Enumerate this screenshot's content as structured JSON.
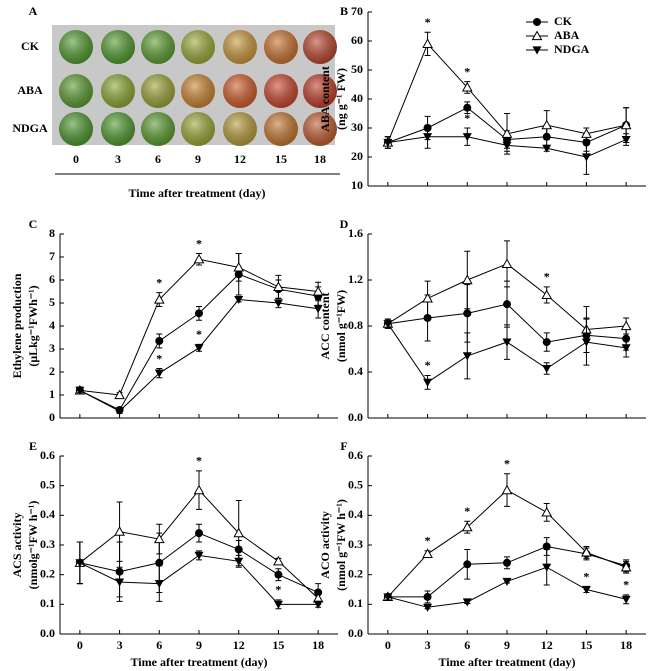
{
  "chart_data": [
    {
      "type": "image",
      "panel_label": "A",
      "rows": [
        "CK",
        "ABA",
        "NDGA"
      ],
      "columns": [
        0,
        3,
        6,
        9,
        12,
        15,
        18
      ],
      "xlabel": "Time after treatment (day)"
    },
    {
      "type": "line",
      "panel_label": "B",
      "ylabel": [
        "ABA content",
        "(ng g⁻¹ FW)"
      ],
      "x": [
        0,
        3,
        6,
        9,
        12,
        15,
        18
      ],
      "xlim": [
        -1.5,
        19.5
      ],
      "xticks": [
        0,
        3,
        6,
        9,
        12,
        15,
        18
      ],
      "xtick_labels": false,
      "ylim": [
        10,
        70
      ],
      "yticks": [
        10,
        20,
        30,
        40,
        50,
        60,
        70
      ],
      "legend": "upper right",
      "series": [
        {
          "name": "CK",
          "color": "#000000",
          "marker": "circle",
          "values": [
            25,
            30,
            37,
            26,
            27,
            25,
            31
          ],
          "errors": [
            2,
            4,
            2,
            3,
            3,
            3,
            6
          ]
        },
        {
          "name": "ABA",
          "color": "#000000",
          "marker": "triangle-open",
          "values": [
            25,
            59,
            44,
            28,
            31,
            28,
            31
          ],
          "errors": [
            2,
            4,
            2,
            7,
            5,
            2,
            6
          ]
        },
        {
          "name": "NDGA",
          "color": "#000000",
          "marker": "triangle-down",
          "values": [
            25,
            27,
            27,
            24,
            23,
            20,
            26
          ],
          "errors": [
            2,
            4,
            3,
            2,
            1,
            6,
            2
          ]
        }
      ],
      "annotations": [
        {
          "text": "*",
          "x": 3,
          "series": "ABA"
        },
        {
          "text": "*",
          "x": 6,
          "series": "ABA"
        },
        {
          "text": "*",
          "x": 6,
          "series": "NDGA"
        }
      ]
    },
    {
      "type": "line",
      "panel_label": "C",
      "ylabel": [
        "Ethylene production",
        "(μLkg⁻¹FWh⁻¹)"
      ],
      "x": [
        0,
        3,
        6,
        9,
        12,
        15,
        18
      ],
      "xlim": [
        -1.5,
        19.5
      ],
      "xticks": [
        0,
        3,
        6,
        9,
        12,
        15,
        18
      ],
      "xtick_labels": false,
      "ylim": [
        0,
        8
      ],
      "yticks": [
        0,
        1,
        2,
        3,
        4,
        5,
        6,
        7,
        8
      ],
      "series": [
        {
          "name": "CK",
          "color": "#000000",
          "marker": "circle",
          "values": [
            1.2,
            0.35,
            3.35,
            4.55,
            6.25,
            5.6,
            5.3
          ],
          "errors": [
            0.15,
            0.1,
            0.3,
            0.3,
            0.9,
            0.4,
            0.4
          ]
        },
        {
          "name": "ABA",
          "color": "#000000",
          "marker": "triangle-open",
          "values": [
            1.2,
            1.0,
            5.15,
            6.9,
            6.55,
            5.7,
            5.5
          ],
          "errors": [
            0.1,
            0.1,
            0.3,
            0.25,
            0.6,
            0.5,
            0.4
          ]
        },
        {
          "name": "NDGA",
          "color": "#000000",
          "marker": "triangle-down",
          "values": [
            1.2,
            0.3,
            1.95,
            3.05,
            5.15,
            5.0,
            4.75
          ],
          "errors": [
            0.1,
            0.1,
            0.2,
            0.15,
            0.1,
            0.2,
            0.4
          ]
        }
      ],
      "annotations": [
        {
          "text": "*",
          "x": 6,
          "series": "ABA"
        },
        {
          "text": "*",
          "x": 9,
          "series": "ABA"
        },
        {
          "text": "*",
          "x": 6,
          "series": "NDGA"
        },
        {
          "text": "*",
          "x": 9,
          "series": "NDGA"
        }
      ]
    },
    {
      "type": "line",
      "panel_label": "D",
      "ylabel": [
        "ACC content",
        "(nmol g⁻¹FW)"
      ],
      "x": [
        0,
        3,
        6,
        9,
        12,
        15,
        18
      ],
      "xlim": [
        -1.5,
        19.5
      ],
      "xticks": [
        0,
        3,
        6,
        9,
        12,
        15,
        18
      ],
      "xtick_labels": false,
      "ylim": [
        0,
        1.6
      ],
      "yticks": [
        {
          "value": 0,
          "label": "0.0"
        },
        0.4,
        0.8,
        1.2,
        1.6
      ],
      "series": [
        {
          "name": "CK",
          "color": "#000000",
          "marker": "circle",
          "values": [
            0.82,
            0.87,
            0.91,
            0.99,
            0.66,
            0.72,
            0.69
          ],
          "errors": [
            0.04,
            0.2,
            0.25,
            0.2,
            0.08,
            0.15,
            0.1
          ]
        },
        {
          "name": "ABA",
          "color": "#000000",
          "marker": "triangle-open",
          "values": [
            0.82,
            1.04,
            1.2,
            1.34,
            1.07,
            0.77,
            0.8
          ],
          "errors": [
            0.04,
            0.15,
            0.25,
            0.2,
            0.07,
            0.2,
            0.07
          ]
        },
        {
          "name": "NDGA",
          "color": "#000000",
          "marker": "triangle-down",
          "values": [
            0.82,
            0.31,
            0.54,
            0.66,
            0.43,
            0.66,
            0.61
          ],
          "errors": [
            0.04,
            0.06,
            0.2,
            0.15,
            0.05,
            0.2,
            0.08
          ]
        }
      ],
      "annotations": [
        {
          "text": "*",
          "x": 12,
          "series": "ABA"
        },
        {
          "text": "*",
          "x": 3,
          "series": "NDGA"
        }
      ]
    },
    {
      "type": "line",
      "panel_label": "E",
      "ylabel": [
        "ACS activity",
        "(nmolg⁻¹FW h⁻¹)"
      ],
      "xlabel": "Time after treatment (day)",
      "x": [
        0,
        3,
        6,
        9,
        12,
        15,
        18
      ],
      "xlim": [
        -1.5,
        19.5
      ],
      "xticks": [
        0,
        3,
        6,
        9,
        12,
        15,
        18
      ],
      "xtick_labels": true,
      "ylim": [
        0,
        0.6
      ],
      "yticks": [
        {
          "value": 0,
          "label": "0.0"
        },
        0.1,
        0.2,
        0.3,
        0.4,
        0.5,
        0.6
      ],
      "series": [
        {
          "name": "CK",
          "color": "#000000",
          "marker": "circle",
          "values": [
            0.24,
            0.21,
            0.24,
            0.34,
            0.285,
            0.2,
            0.14
          ],
          "errors": [
            0.07,
            0.1,
            0.1,
            0.03,
            0.03,
            0.02,
            0.03
          ]
        },
        {
          "name": "ABA",
          "color": "#000000",
          "marker": "triangle-open",
          "values": [
            0.24,
            0.345,
            0.32,
            0.485,
            0.34,
            0.245,
            0.12
          ],
          "errors": [
            0.07,
            0.1,
            0.05,
            0.065,
            0.11,
            0.01,
            0.02
          ]
        },
        {
          "name": "NDGA",
          "color": "#000000",
          "marker": "triangle-down",
          "values": [
            0.24,
            0.175,
            0.17,
            0.265,
            0.245,
            0.1,
            0.1
          ],
          "errors": [
            0.07,
            0.05,
            0.06,
            0.015,
            0.02,
            0.015,
            0.01
          ]
        }
      ],
      "annotations": [
        {
          "text": "*",
          "x": 9,
          "series": "ABA"
        },
        {
          "text": "*",
          "x": 15,
          "series": "NDGA"
        }
      ]
    },
    {
      "type": "line",
      "panel_label": "F",
      "ylabel": [
        "ACO activity",
        "(nmol g⁻¹FW h⁻¹)"
      ],
      "xlabel": "Time after treatment (day)",
      "x": [
        0,
        3,
        6,
        9,
        12,
        15,
        18
      ],
      "xlim": [
        -1.5,
        19.5
      ],
      "xticks": [
        0,
        3,
        6,
        9,
        12,
        15,
        18
      ],
      "xtick_labels": true,
      "ylim": [
        0,
        0.6
      ],
      "yticks": [
        {
          "value": 0,
          "label": "0.0"
        },
        0.1,
        0.2,
        0.3,
        0.4,
        0.5,
        0.6
      ],
      "series": [
        {
          "name": "CK",
          "color": "#000000",
          "marker": "circle",
          "values": [
            0.125,
            0.125,
            0.235,
            0.24,
            0.295,
            0.27,
            0.23
          ],
          "errors": [
            0.01,
            0.02,
            0.05,
            0.02,
            0.03,
            0.02,
            0.02
          ]
        },
        {
          "name": "ABA",
          "color": "#000000",
          "marker": "triangle-open",
          "values": [
            0.125,
            0.27,
            0.36,
            0.485,
            0.41,
            0.275,
            0.225
          ],
          "errors": [
            0.01,
            0.01,
            0.02,
            0.055,
            0.03,
            0.02,
            0.02
          ]
        },
        {
          "name": "NDGA",
          "color": "#000000",
          "marker": "triangle-down",
          "values": [
            0.125,
            0.09,
            0.108,
            0.177,
            0.225,
            0.15,
            0.117
          ],
          "errors": [
            0.01,
            0.005,
            0.005,
            0.005,
            0.06,
            0.01,
            0.015
          ]
        }
      ],
      "annotations": [
        {
          "text": "*",
          "x": 3,
          "series": "ABA"
        },
        {
          "text": "*",
          "x": 6,
          "series": "ABA"
        },
        {
          "text": "*",
          "x": 9,
          "series": "ABA"
        },
        {
          "text": "*",
          "x": 15,
          "series": "NDGA"
        },
        {
          "text": "*",
          "x": 18,
          "series": "NDGA"
        }
      ]
    }
  ]
}
